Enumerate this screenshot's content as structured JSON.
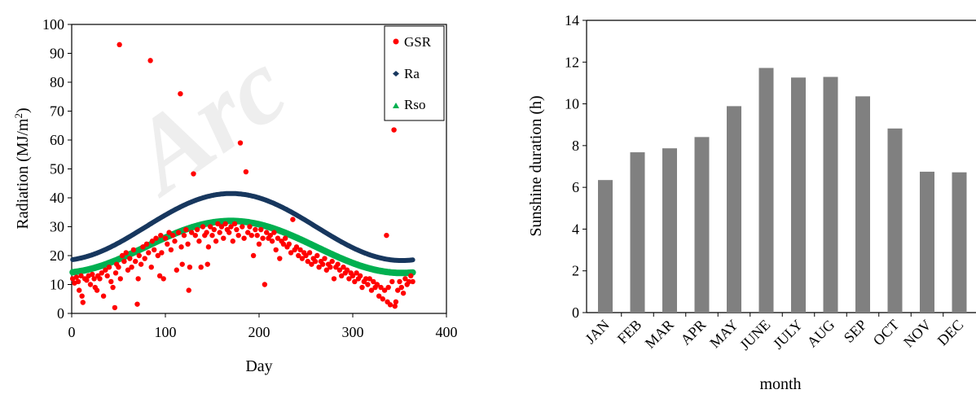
{
  "watermark": "Arc",
  "chart_data": [
    {
      "type": "scatter",
      "xlabel": "Day",
      "ylabel_main": "Radiation (MJ/m",
      "ylabel_sup": "2",
      "ylabel_end": ")",
      "xlim": [
        0,
        400
      ],
      "ylim": [
        0,
        100
      ],
      "xticks": [
        0,
        100,
        200,
        300,
        400
      ],
      "yticks": [
        0,
        10,
        20,
        30,
        40,
        50,
        60,
        70,
        80,
        90,
        100
      ],
      "grid": false,
      "legend_position": "top-right",
      "series": [
        {
          "name": "GSR",
          "color": "#ff0000",
          "marker": "circle"
        },
        {
          "name": "Ra",
          "color": "#17375e",
          "marker": "diamond"
        },
        {
          "name": "Rso",
          "color": "#00b050",
          "marker": "triangle"
        }
      ],
      "gsr_points": [
        [
          1,
          12
        ],
        [
          3,
          10.5
        ],
        [
          5,
          12.5
        ],
        [
          7,
          11
        ],
        [
          8,
          8
        ],
        [
          10,
          13
        ],
        [
          11,
          6
        ],
        [
          12,
          3.8
        ],
        [
          14,
          12
        ],
        [
          16,
          11.5
        ],
        [
          18,
          13
        ],
        [
          20,
          10
        ],
        [
          22,
          13.5
        ],
        [
          24,
          12
        ],
        [
          25,
          9
        ],
        [
          27,
          8
        ],
        [
          28,
          13
        ],
        [
          30,
          12
        ],
        [
          32,
          14
        ],
        [
          34,
          6
        ],
        [
          36,
          15
        ],
        [
          38,
          13
        ],
        [
          40,
          16
        ],
        [
          42,
          11
        ],
        [
          44,
          9
        ],
        [
          46,
          2
        ],
        [
          47,
          14
        ],
        [
          48,
          17
        ],
        [
          50,
          16
        ],
        [
          51,
          93
        ],
        [
          52,
          12
        ],
        [
          54,
          20
        ],
        [
          56,
          18
        ],
        [
          58,
          21
        ],
        [
          60,
          15
        ],
        [
          62,
          19
        ],
        [
          64,
          16
        ],
        [
          66,
          22
        ],
        [
          68,
          18
        ],
        [
          70,
          3.2
        ],
        [
          71,
          12
        ],
        [
          72,
          20
        ],
        [
          74,
          17
        ],
        [
          76,
          23
        ],
        [
          78,
          19
        ],
        [
          80,
          24
        ],
        [
          82,
          21
        ],
        [
          84,
          87.5
        ],
        [
          85,
          16
        ],
        [
          86,
          25
        ],
        [
          88,
          22
        ],
        [
          90,
          26
        ],
        [
          92,
          20
        ],
        [
          94,
          13
        ],
        [
          95,
          27
        ],
        [
          96,
          21
        ],
        [
          98,
          12
        ],
        [
          100,
          26
        ],
        [
          102,
          24
        ],
        [
          104,
          28
        ],
        [
          106,
          22
        ],
        [
          108,
          27
        ],
        [
          110,
          25
        ],
        [
          112,
          15
        ],
        [
          114,
          28
        ],
        [
          116,
          76
        ],
        [
          117,
          23
        ],
        [
          118,
          17
        ],
        [
          120,
          27
        ],
        [
          122,
          29
        ],
        [
          124,
          24
        ],
        [
          125,
          8
        ],
        [
          126,
          16
        ],
        [
          128,
          28
        ],
        [
          130,
          48.3
        ],
        [
          132,
          27
        ],
        [
          134,
          29
        ],
        [
          136,
          25
        ],
        [
          138,
          16
        ],
        [
          140,
          30
        ],
        [
          142,
          27
        ],
        [
          144,
          28
        ],
        [
          145,
          17
        ],
        [
          146,
          23
        ],
        [
          148,
          30
        ],
        [
          150,
          27
        ],
        [
          152,
          29
        ],
        [
          154,
          25
        ],
        [
          156,
          31
        ],
        [
          158,
          28
        ],
        [
          160,
          30
        ],
        [
          162,
          26
        ],
        [
          164,
          31
        ],
        [
          166,
          29
        ],
        [
          168,
          28
        ],
        [
          170,
          30
        ],
        [
          172,
          25
        ],
        [
          174,
          31
        ],
        [
          176,
          29
        ],
        [
          178,
          27
        ],
        [
          180,
          59
        ],
        [
          182,
          30
        ],
        [
          184,
          26
        ],
        [
          186,
          49
        ],
        [
          188,
          28
        ],
        [
          190,
          30
        ],
        [
          192,
          27
        ],
        [
          194,
          20
        ],
        [
          196,
          29
        ],
        [
          198,
          27
        ],
        [
          200,
          24
        ],
        [
          202,
          29
        ],
        [
          204,
          26
        ],
        [
          206,
          10
        ],
        [
          208,
          28
        ],
        [
          210,
          26
        ],
        [
          212,
          27
        ],
        [
          214,
          25
        ],
        [
          216,
          28
        ],
        [
          218,
          22
        ],
        [
          220,
          26
        ],
        [
          222,
          19
        ],
        [
          224,
          25
        ],
        [
          226,
          24
        ],
        [
          228,
          26
        ],
        [
          230,
          23
        ],
        [
          232,
          24
        ],
        [
          234,
          21
        ],
        [
          236,
          32.5
        ],
        [
          238,
          22
        ],
        [
          240,
          23
        ],
        [
          242,
          20
        ],
        [
          244,
          22
        ],
        [
          246,
          19
        ],
        [
          248,
          21
        ],
        [
          250,
          20
        ],
        [
          252,
          18
        ],
        [
          254,
          21
        ],
        [
          256,
          17
        ],
        [
          258,
          19
        ],
        [
          260,
          18
        ],
        [
          262,
          20
        ],
        [
          264,
          16
        ],
        [
          266,
          18
        ],
        [
          268,
          17
        ],
        [
          270,
          19
        ],
        [
          272,
          15
        ],
        [
          274,
          17
        ],
        [
          276,
          16
        ],
        [
          278,
          18
        ],
        [
          280,
          12
        ],
        [
          282,
          16
        ],
        [
          284,
          17
        ],
        [
          286,
          15
        ],
        [
          288,
          13
        ],
        [
          290,
          16
        ],
        [
          292,
          14
        ],
        [
          294,
          15
        ],
        [
          296,
          12
        ],
        [
          298,
          14
        ],
        [
          300,
          13
        ],
        [
          302,
          11
        ],
        [
          304,
          14
        ],
        [
          306,
          12
        ],
        [
          308,
          13
        ],
        [
          310,
          9
        ],
        [
          312,
          11
        ],
        [
          314,
          12
        ],
        [
          316,
          10
        ],
        [
          318,
          12
        ],
        [
          320,
          8
        ],
        [
          322,
          11
        ],
        [
          324,
          9
        ],
        [
          326,
          10
        ],
        [
          328,
          6
        ],
        [
          330,
          9
        ],
        [
          332,
          5
        ],
        [
          334,
          8
        ],
        [
          336,
          27
        ],
        [
          337,
          4
        ],
        [
          338,
          9
        ],
        [
          340,
          3
        ],
        [
          342,
          11
        ],
        [
          344,
          63.5
        ],
        [
          345,
          2.5
        ],
        [
          346,
          4
        ],
        [
          348,
          8
        ],
        [
          350,
          11
        ],
        [
          352,
          9
        ],
        [
          354,
          7
        ],
        [
          356,
          12
        ],
        [
          358,
          10
        ],
        [
          360,
          11
        ],
        [
          362,
          13
        ],
        [
          364,
          11
        ]
      ]
    },
    {
      "type": "bar",
      "xlabel": "month",
      "ylabel": "Sunshine duration (h)",
      "ylim": [
        0,
        14
      ],
      "yticks": [
        0,
        2,
        4,
        6,
        8,
        10,
        12,
        14
      ],
      "grid": false,
      "bar_color": "#808080",
      "categories": [
        "JAN",
        "FEB",
        "MAR",
        "APR",
        "MAY",
        "JUNE",
        "JULY",
        "AUG",
        "SEP",
        "OCT",
        "NOV",
        "DEC"
      ],
      "values": [
        6.35,
        7.68,
        7.87,
        8.41,
        9.89,
        11.72,
        11.26,
        11.29,
        10.36,
        8.82,
        6.75,
        6.72
      ]
    }
  ]
}
